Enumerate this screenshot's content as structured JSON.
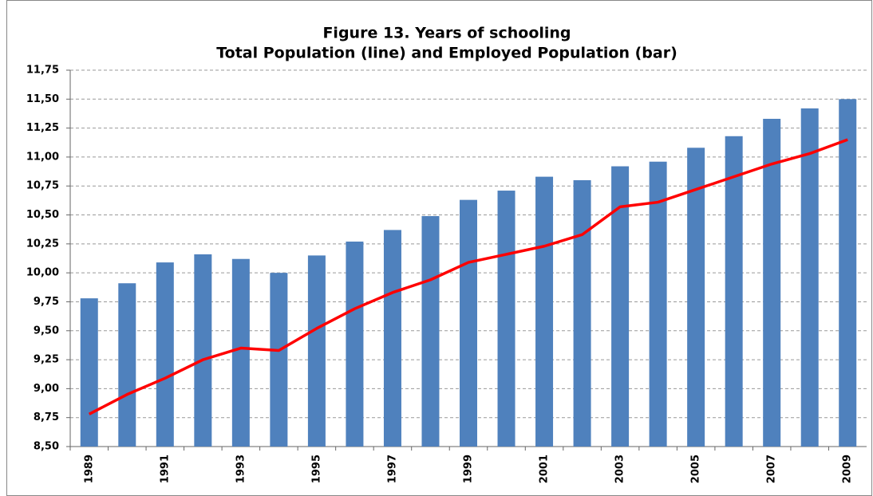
{
  "chart_data": {
    "type": "bar",
    "title": "Figure 13. Years of schooling",
    "subtitle": "Total Population (line) and Employed Population (bar)",
    "categories": [
      "1989",
      null,
      "1991",
      null,
      "1993",
      null,
      "1995",
      null,
      "1997",
      null,
      "1999",
      null,
      "2001",
      null,
      "2003",
      null,
      "2005",
      null,
      "2007",
      null,
      "2009"
    ],
    "series": [
      {
        "type": "bar",
        "color": "#4f81bd",
        "values": [
          9.78,
          9.91,
          10.09,
          10.16,
          10.12,
          10.0,
          10.15,
          10.27,
          10.37,
          10.49,
          10.63,
          10.71,
          10.83,
          10.8,
          10.92,
          10.96,
          11.08,
          11.18,
          11.33,
          11.42,
          11.5
        ]
      },
      {
        "type": "line",
        "color": "#ff0000",
        "values": [
          8.78,
          8.95,
          9.09,
          9.25,
          9.35,
          9.33,
          9.52,
          9.69,
          9.83,
          9.94,
          10.09,
          10.16,
          10.23,
          10.33,
          10.57,
          10.61,
          10.72,
          10.83,
          10.94,
          11.03,
          11.15
        ]
      }
    ],
    "ylim": [
      8.5,
      11.75
    ],
    "yticks": [
      {
        "value": 8.5,
        "label": "8,50"
      },
      {
        "value": 8.75,
        "label": "8,75"
      },
      {
        "value": 9,
        "label": "9,00"
      },
      {
        "value": 9.25,
        "label": "9,25"
      },
      {
        "value": 9.5,
        "label": "9,50"
      },
      {
        "value": 9.75,
        "label": "9,75"
      },
      {
        "value": 10,
        "label": "10,00"
      },
      {
        "value": 10.25,
        "label": "10,25"
      },
      {
        "value": 10.5,
        "label": "10,50"
      },
      {
        "value": 10.75,
        "label": "10,75"
      },
      {
        "value": 11,
        "label": "11,00"
      },
      {
        "value": 11.25,
        "label": "11,25"
      },
      {
        "value": 11.5,
        "label": "11,50"
      },
      {
        "value": 11.75,
        "label": "11,75"
      }
    ],
    "grid": true
  }
}
